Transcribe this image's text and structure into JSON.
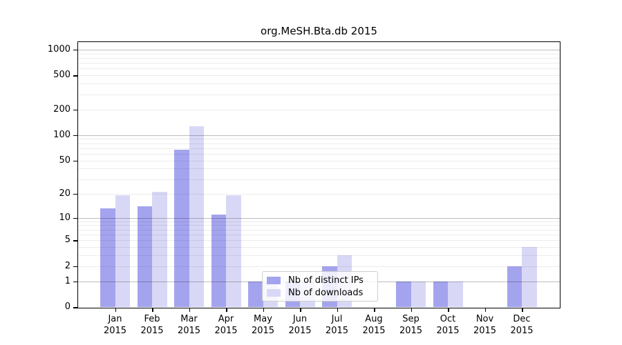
{
  "chart_data": {
    "type": "bar",
    "title": "org.MeSH.Bta.db 2015",
    "categories": [
      "Jan 2015",
      "Feb 2015",
      "Mar 2015",
      "Apr 2015",
      "May 2015",
      "Jun 2015",
      "Jul 2015",
      "Aug 2015",
      "Sep 2015",
      "Oct 2015",
      "Nov 2015",
      "Dec 2015"
    ],
    "series": [
      {
        "name": "Nb of distinct IPs",
        "color": "#a4a4ee",
        "values": [
          13,
          14,
          67,
          11,
          1,
          1,
          2,
          0,
          1,
          1,
          0,
          2
        ]
      },
      {
        "name": "Nb of downloads",
        "color": "#d8d8f6",
        "values": [
          19,
          21,
          127,
          19,
          1,
          1,
          3,
          0,
          1,
          1,
          0,
          4
        ]
      }
    ],
    "yticks": [
      0,
      1,
      2,
      5,
      10,
      20,
      50,
      100,
      200,
      500,
      1000
    ],
    "yscale": "log1p",
    "ylim": [
      0,
      1400
    ],
    "xlabel": "",
    "ylabel": "",
    "grid": "horizontal major and minor gridlines drawn over bars",
    "legend_position": "inside lower-center"
  }
}
